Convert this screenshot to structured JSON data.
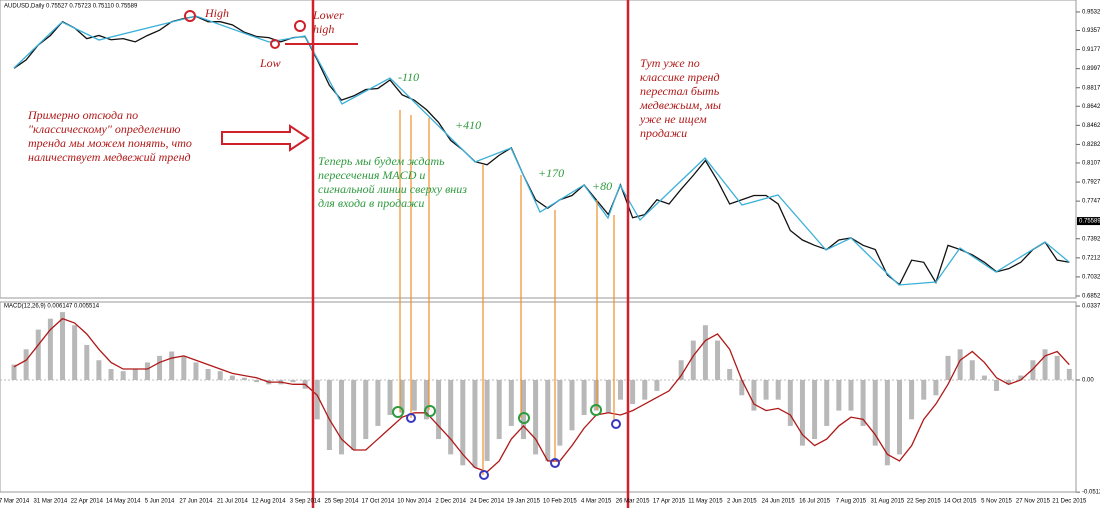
{
  "chart_data": [
    {
      "type": "line",
      "title": "AUDUSD,Daily 0.75527 0.75723 0.75110 0.75589",
      "color": "#111111",
      "values": [
        0.9,
        0.908,
        0.922,
        0.931,
        0.944,
        0.938,
        0.928,
        0.931,
        0.927,
        0.928,
        0.925,
        0.931,
        0.936,
        0.944,
        0.947,
        0.949,
        0.944,
        0.944,
        0.941,
        0.934,
        0.93,
        0.929,
        0.925,
        0.929,
        0.93,
        0.908,
        0.884,
        0.87,
        0.874,
        0.88,
        0.881,
        0.889,
        0.875,
        0.87,
        0.861,
        0.849,
        0.832,
        0.823,
        0.812,
        0.809,
        0.818,
        0.825,
        0.799,
        0.776,
        0.768,
        0.776,
        0.78,
        0.79,
        0.776,
        0.762,
        0.79,
        0.759,
        0.762,
        0.776,
        0.772,
        0.786,
        0.799,
        0.813,
        0.794,
        0.772,
        0.776,
        0.78,
        0.78,
        0.772,
        0.747,
        0.738,
        0.733,
        0.729,
        0.738,
        0.74,
        0.733,
        0.729,
        0.705,
        0.696,
        0.719,
        0.717,
        0.698,
        0.733,
        0.729,
        0.724,
        0.717,
        0.708,
        0.711,
        0.717,
        0.729,
        0.736,
        0.719,
        0.717
      ],
      "last_price": 0.75589,
      "ylim": [
        0.6833,
        0.9607
      ],
      "yticks": [
        {
          "value": 0.9532,
          "label": "0.95320"
        },
        {
          "value": 0.9357,
          "label": "0.93570"
        },
        {
          "value": 0.9177,
          "label": "0.91770"
        },
        {
          "value": 0.8997,
          "label": "0.89970"
        },
        {
          "value": 0.8817,
          "label": "0.88170"
        },
        {
          "value": 0.8642,
          "label": "0.86420"
        },
        {
          "value": 0.8462,
          "label": "0.84620"
        },
        {
          "value": 0.8282,
          "label": "0.82820"
        },
        {
          "value": 0.8107,
          "label": "0.81070"
        },
        {
          "value": 0.7927,
          "label": "0.79270"
        },
        {
          "value": 0.7747,
          "label": "0.77470"
        },
        {
          "value": 0.7392,
          "label": "0.73920"
        },
        {
          "value": 0.7212,
          "label": "0.72120"
        },
        {
          "value": 0.7032,
          "label": "0.70320"
        },
        {
          "value": 0.6852,
          "label": "0.68520"
        }
      ]
    },
    {
      "type": "combo",
      "title": "MACD(12,26,9) 0.006147 0.005514",
      "categories": [
        "7 Mar 2014",
        null,
        null,
        "31 Mar 2014",
        null,
        null,
        "22 Apr 2014",
        null,
        null,
        "14 May 2014",
        null,
        null,
        "5 Jun 2014",
        null,
        null,
        "27 Jun 2014",
        null,
        null,
        "21 Jul 2014",
        null,
        null,
        "12 Aug 2014",
        null,
        null,
        "3 Sep 2014",
        null,
        null,
        "25 Sep 2014",
        null,
        null,
        "17 Oct 2014",
        null,
        null,
        "10 Nov 2014",
        null,
        null,
        "2 Dec 2014",
        null,
        null,
        "24 Dec 2014",
        null,
        null,
        "19 Jan 2015",
        null,
        null,
        "10 Feb 2015",
        null,
        null,
        "4 Mar 2015",
        null,
        null,
        "26 Mar 2015",
        null,
        null,
        "17 Apr 2015",
        null,
        null,
        "11 May 2015",
        null,
        null,
        "2 Jun 2015",
        null,
        null,
        "24 Jun 2015",
        null,
        null,
        "16 Jul 2015",
        null,
        null,
        "7 Aug 2015",
        null,
        null,
        "31 Aug 2015",
        null,
        null,
        "22 Sep 2015",
        null,
        null,
        "14 Oct 2015",
        null,
        null,
        "5 Nov 2015",
        null,
        null,
        "27 Nov 2015",
        null,
        null,
        "21 Dec 2015"
      ],
      "series": [
        {
          "type": "bar",
          "color": "#b8b8b8",
          "values": [
            0.007,
            0.014,
            0.023,
            0.028,
            0.031,
            0.025,
            0.016,
            0.009,
            0.005,
            0.004,
            0.005,
            0.008,
            0.011,
            0.013,
            0.011,
            0.008,
            0.005,
            0.004,
            0.002,
            0.001,
            -0.001,
            -0.002,
            -0.002,
            -0.001,
            -0.004,
            -0.018,
            -0.032,
            -0.034,
            -0.032,
            -0.027,
            -0.021,
            -0.016,
            -0.015,
            -0.014,
            -0.018,
            -0.027,
            -0.034,
            -0.039,
            -0.04,
            -0.037,
            -0.027,
            -0.021,
            -0.027,
            -0.034,
            -0.037,
            -0.03,
            -0.023,
            -0.016,
            -0.014,
            -0.015,
            -0.009,
            -0.011,
            -0.009,
            -0.005,
            0,
            0.009,
            0.018,
            0.025,
            0.018,
            0.005,
            -0.007,
            -0.014,
            -0.009,
            -0.009,
            -0.021,
            -0.03,
            -0.027,
            -0.021,
            -0.014,
            -0.014,
            -0.021,
            -0.03,
            -0.039,
            -0.034,
            -0.018,
            -0.009,
            -0.007,
            0.011,
            0.014,
            0.009,
            0.002,
            -0.005,
            -0.002,
            0.002,
            0.009,
            0.014,
            0.011,
            0.005
          ]
        },
        {
          "type": "line",
          "color": "#b01818",
          "values": [
            0.006,
            0.009,
            0.016,
            0.023,
            0.028,
            0.026,
            0.021,
            0.014,
            0.008,
            0.005,
            0.005,
            0.005,
            0.008,
            0.01,
            0.011,
            0.009,
            0.007,
            0.005,
            0.003,
            0.002,
            0.001,
            -0.001,
            -0.001,
            -0.002,
            -0.002,
            -0.007,
            -0.018,
            -0.027,
            -0.032,
            -0.032,
            -0.027,
            -0.022,
            -0.017,
            -0.015,
            -0.015,
            -0.021,
            -0.027,
            -0.034,
            -0.04,
            -0.042,
            -0.037,
            -0.027,
            -0.021,
            -0.027,
            -0.037,
            -0.037,
            -0.03,
            -0.022,
            -0.016,
            -0.015,
            -0.016,
            -0.014,
            -0.011,
            -0.008,
            -0.005,
            0.002,
            0.011,
            0.018,
            0.021,
            0.014,
            0,
            -0.011,
            -0.014,
            -0.013,
            -0.016,
            -0.025,
            -0.03,
            -0.027,
            -0.021,
            -0.017,
            -0.018,
            -0.025,
            -0.034,
            -0.037,
            -0.03,
            -0.018,
            -0.011,
            -0.002,
            0.009,
            0.013,
            0.008,
            0.001,
            -0.002,
            0,
            0.005,
            0.011,
            0.013,
            0.007
          ]
        }
      ],
      "ylim": [
        -0.0521,
        0.0347
      ],
      "yticks": [
        0.033765,
        {
          "value": 0,
          "label": "0.00"
        },
        -0.051249
      ]
    }
  ],
  "annotations": [
    "High",
    "Lower high",
    "Low",
    "Примерно отсюда по \"классическому\" определению тренда мы можем понять, что наличествует медвежий тренд",
    "Тут уже по классике тренд перестал быть медвежьим, мы уже не ищем продажи",
    "Теперь мы будем ждать пересечения MACD и сигнальной линии сверху вниз для входа в продажи",
    "-110",
    "+410",
    "+170",
    "+80"
  ]
}
